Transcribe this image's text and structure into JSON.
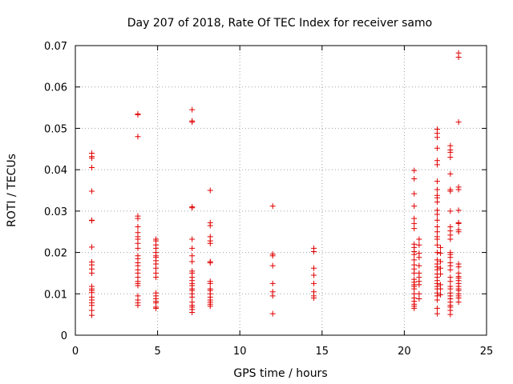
{
  "chart_data": {
    "type": "scatter",
    "title": "Day 207 of 2018, Rate Of TEC Index for receiver samo",
    "xlabel": "GPS time / hours",
    "ylabel": "ROTI / TECUs",
    "xlim": [
      0,
      25
    ],
    "ylim": [
      0,
      0.07
    ],
    "xticks": [
      0,
      5,
      10,
      15,
      20,
      25
    ],
    "xtick_labels": [
      "0",
      "5",
      "10",
      "15",
      "20",
      "25"
    ],
    "yticks": [
      0,
      0.01,
      0.02,
      0.03,
      0.04,
      0.05,
      0.06,
      0.07
    ],
    "ytick_labels": [
      "0",
      "0.01",
      "0.02",
      "0.03",
      "0.04",
      "0.05",
      "0.06",
      "0.07"
    ],
    "grid": true,
    "marker": "+",
    "color": "#e00000",
    "points": [
      [
        1.0,
        0.044
      ],
      [
        1.0,
        0.0432
      ],
      [
        1.0,
        0.0428
      ],
      [
        1.0,
        0.0405
      ],
      [
        1.0,
        0.0348
      ],
      [
        1.0,
        0.0278
      ],
      [
        1.0,
        0.0277
      ],
      [
        1.0,
        0.0213
      ],
      [
        1.0,
        0.0177
      ],
      [
        1.0,
        0.017
      ],
      [
        1.0,
        0.016
      ],
      [
        1.0,
        0.015
      ],
      [
        1.0,
        0.0118
      ],
      [
        1.0,
        0.0112
      ],
      [
        1.0,
        0.0108
      ],
      [
        1.0,
        0.0103
      ],
      [
        1.0,
        0.0092
      ],
      [
        1.0,
        0.0085
      ],
      [
        1.0,
        0.0078
      ],
      [
        1.0,
        0.0072
      ],
      [
        1.0,
        0.006
      ],
      [
        1.0,
        0.0048
      ],
      [
        3.8,
        0.0535
      ],
      [
        3.8,
        0.0533
      ],
      [
        3.8,
        0.048
      ],
      [
        3.8,
        0.0288
      ],
      [
        3.8,
        0.0282
      ],
      [
        3.8,
        0.0262
      ],
      [
        3.8,
        0.0248
      ],
      [
        3.8,
        0.0238
      ],
      [
        3.8,
        0.0232
      ],
      [
        3.8,
        0.0222
      ],
      [
        3.8,
        0.021
      ],
      [
        3.8,
        0.0192
      ],
      [
        3.8,
        0.0185
      ],
      [
        3.8,
        0.0175
      ],
      [
        3.8,
        0.0168
      ],
      [
        3.8,
        0.0158
      ],
      [
        3.8,
        0.015
      ],
      [
        3.8,
        0.014
      ],
      [
        3.8,
        0.013
      ],
      [
        3.8,
        0.0125
      ],
      [
        3.8,
        0.012
      ],
      [
        3.8,
        0.0095
      ],
      [
        3.8,
        0.0085
      ],
      [
        3.8,
        0.0078
      ],
      [
        3.8,
        0.0072
      ],
      [
        4.9,
        0.0232
      ],
      [
        4.9,
        0.0228
      ],
      [
        4.9,
        0.0218
      ],
      [
        4.9,
        0.021
      ],
      [
        4.9,
        0.02
      ],
      [
        4.9,
        0.0192
      ],
      [
        4.9,
        0.0188
      ],
      [
        4.9,
        0.018
      ],
      [
        4.9,
        0.0172
      ],
      [
        4.9,
        0.0162
      ],
      [
        4.9,
        0.015
      ],
      [
        4.9,
        0.014
      ],
      [
        4.9,
        0.0102
      ],
      [
        4.9,
        0.0095
      ],
      [
        4.9,
        0.0088
      ],
      [
        4.9,
        0.0082
      ],
      [
        4.9,
        0.0078
      ],
      [
        4.9,
        0.0068
      ],
      [
        4.9,
        0.0065
      ],
      [
        7.1,
        0.0545
      ],
      [
        7.1,
        0.0518
      ],
      [
        7.1,
        0.0515
      ],
      [
        7.1,
        0.031
      ],
      [
        7.1,
        0.0308
      ],
      [
        7.1,
        0.0232
      ],
      [
        7.1,
        0.021
      ],
      [
        7.1,
        0.0192
      ],
      [
        7.1,
        0.0178
      ],
      [
        7.1,
        0.0155
      ],
      [
        7.1,
        0.015
      ],
      [
        7.1,
        0.014
      ],
      [
        7.1,
        0.0132
      ],
      [
        7.1,
        0.0125
      ],
      [
        7.1,
        0.012
      ],
      [
        7.1,
        0.0112
      ],
      [
        7.1,
        0.0108
      ],
      [
        7.1,
        0.01
      ],
      [
        7.1,
        0.0092
      ],
      [
        7.1,
        0.008
      ],
      [
        7.1,
        0.0072
      ],
      [
        7.1,
        0.0068
      ],
      [
        7.1,
        0.0062
      ],
      [
        7.1,
        0.0055
      ],
      [
        8.2,
        0.035
      ],
      [
        8.2,
        0.0272
      ],
      [
        8.2,
        0.0265
      ],
      [
        8.2,
        0.0238
      ],
      [
        8.2,
        0.0228
      ],
      [
        8.2,
        0.0222
      ],
      [
        8.2,
        0.0178
      ],
      [
        8.2,
        0.0175
      ],
      [
        8.2,
        0.013
      ],
      [
        8.2,
        0.0125
      ],
      [
        8.2,
        0.0112
      ],
      [
        8.2,
        0.0108
      ],
      [
        8.2,
        0.01
      ],
      [
        8.2,
        0.0092
      ],
      [
        8.2,
        0.0085
      ],
      [
        8.2,
        0.008
      ],
      [
        8.2,
        0.0075
      ],
      [
        8.2,
        0.007
      ],
      [
        12.0,
        0.0312
      ],
      [
        12.0,
        0.0196
      ],
      [
        12.0,
        0.0192
      ],
      [
        12.0,
        0.0168
      ],
      [
        12.0,
        0.0125
      ],
      [
        12.0,
        0.0105
      ],
      [
        12.0,
        0.0095
      ],
      [
        12.0,
        0.0052
      ],
      [
        14.5,
        0.021
      ],
      [
        14.5,
        0.0202
      ],
      [
        14.5,
        0.0162
      ],
      [
        14.5,
        0.0145
      ],
      [
        14.5,
        0.0125
      ],
      [
        14.5,
        0.0105
      ],
      [
        14.5,
        0.0095
      ],
      [
        14.5,
        0.009
      ],
      [
        20.6,
        0.0398
      ],
      [
        20.6,
        0.0378
      ],
      [
        20.6,
        0.0342
      ],
      [
        20.6,
        0.0312
      ],
      [
        20.6,
        0.0282
      ],
      [
        20.6,
        0.027
      ],
      [
        20.6,
        0.0258
      ],
      [
        20.6,
        0.022
      ],
      [
        20.6,
        0.0212
      ],
      [
        20.6,
        0.0202
      ],
      [
        20.6,
        0.0195
      ],
      [
        20.6,
        0.0182
      ],
      [
        20.6,
        0.017
      ],
      [
        20.6,
        0.016
      ],
      [
        20.6,
        0.015
      ],
      [
        20.6,
        0.0135
      ],
      [
        20.6,
        0.0128
      ],
      [
        20.6,
        0.0122
      ],
      [
        20.6,
        0.0118
      ],
      [
        20.6,
        0.0112
      ],
      [
        20.6,
        0.01
      ],
      [
        20.6,
        0.009
      ],
      [
        20.6,
        0.0082
      ],
      [
        20.6,
        0.0075
      ],
      [
        20.6,
        0.007
      ],
      [
        20.6,
        0.0065
      ],
      [
        20.9,
        0.0232
      ],
      [
        20.9,
        0.0218
      ],
      [
        20.9,
        0.0198
      ],
      [
        20.9,
        0.0188
      ],
      [
        20.9,
        0.0168
      ],
      [
        20.9,
        0.015
      ],
      [
        20.9,
        0.014
      ],
      [
        20.9,
        0.013
      ],
      [
        20.9,
        0.0122
      ],
      [
        20.9,
        0.01
      ],
      [
        20.9,
        0.0088
      ],
      [
        22.0,
        0.0498
      ],
      [
        22.0,
        0.0488
      ],
      [
        22.0,
        0.0478
      ],
      [
        22.0,
        0.0452
      ],
      [
        22.0,
        0.0422
      ],
      [
        22.0,
        0.0412
      ],
      [
        22.0,
        0.0372
      ],
      [
        22.0,
        0.0352
      ],
      [
        22.0,
        0.0338
      ],
      [
        22.0,
        0.0332
      ],
      [
        22.0,
        0.0322
      ],
      [
        22.0,
        0.0302
      ],
      [
        22.0,
        0.0292
      ],
      [
        22.0,
        0.0278
      ],
      [
        22.0,
        0.0262
      ],
      [
        22.0,
        0.025
      ],
      [
        22.0,
        0.0238
      ],
      [
        22.0,
        0.0232
      ],
      [
        22.0,
        0.0218
      ],
      [
        22.0,
        0.02
      ],
      [
        22.0,
        0.0182
      ],
      [
        22.0,
        0.0172
      ],
      [
        22.0,
        0.0165
      ],
      [
        22.0,
        0.0158
      ],
      [
        22.0,
        0.0148
      ],
      [
        22.0,
        0.014
      ],
      [
        22.0,
        0.0132
      ],
      [
        22.0,
        0.0125
      ],
      [
        22.0,
        0.0118
      ],
      [
        22.0,
        0.0112
      ],
      [
        22.0,
        0.0102
      ],
      [
        22.0,
        0.0095
      ],
      [
        22.0,
        0.0085
      ],
      [
        22.0,
        0.0065
      ],
      [
        22.0,
        0.0052
      ],
      [
        22.2,
        0.0212
      ],
      [
        22.2,
        0.0198
      ],
      [
        22.2,
        0.0178
      ],
      [
        22.2,
        0.0162
      ],
      [
        22.2,
        0.0148
      ],
      [
        22.2,
        0.0122
      ],
      [
        22.2,
        0.0112
      ],
      [
        22.2,
        0.0098
      ],
      [
        22.8,
        0.0458
      ],
      [
        22.8,
        0.0448
      ],
      [
        22.8,
        0.0442
      ],
      [
        22.8,
        0.043
      ],
      [
        22.8,
        0.039
      ],
      [
        22.8,
        0.0352
      ],
      [
        22.8,
        0.0348
      ],
      [
        22.8,
        0.03
      ],
      [
        22.8,
        0.0262
      ],
      [
        22.8,
        0.0252
      ],
      [
        22.8,
        0.0242
      ],
      [
        22.8,
        0.0232
      ],
      [
        22.8,
        0.02
      ],
      [
        22.8,
        0.0195
      ],
      [
        22.8,
        0.0188
      ],
      [
        22.8,
        0.0175
      ],
      [
        22.8,
        0.0168
      ],
      [
        22.8,
        0.0158
      ],
      [
        22.8,
        0.014
      ],
      [
        22.8,
        0.013
      ],
      [
        22.8,
        0.0118
      ],
      [
        22.8,
        0.0112
      ],
      [
        22.8,
        0.0102
      ],
      [
        22.8,
        0.0095
      ],
      [
        22.8,
        0.0088
      ],
      [
        22.8,
        0.008
      ],
      [
        22.8,
        0.0072
      ],
      [
        22.8,
        0.0068
      ],
      [
        22.8,
        0.006
      ],
      [
        22.8,
        0.005
      ],
      [
        23.3,
        0.0682
      ],
      [
        23.3,
        0.0672
      ],
      [
        23.3,
        0.0515
      ],
      [
        23.3,
        0.0358
      ],
      [
        23.3,
        0.0352
      ],
      [
        23.3,
        0.0302
      ],
      [
        23.3,
        0.0272
      ],
      [
        23.3,
        0.027
      ],
      [
        23.3,
        0.0255
      ],
      [
        23.3,
        0.025
      ],
      [
        23.3,
        0.0172
      ],
      [
        23.3,
        0.0165
      ],
      [
        23.3,
        0.015
      ],
      [
        23.3,
        0.0142
      ],
      [
        23.3,
        0.0138
      ],
      [
        23.3,
        0.0132
      ],
      [
        23.3,
        0.0125
      ],
      [
        23.3,
        0.0118
      ],
      [
        23.3,
        0.0112
      ],
      [
        23.3,
        0.0108
      ],
      [
        23.3,
        0.01
      ],
      [
        23.3,
        0.0095
      ],
      [
        23.3,
        0.009
      ],
      [
        23.3,
        0.008
      ]
    ]
  }
}
